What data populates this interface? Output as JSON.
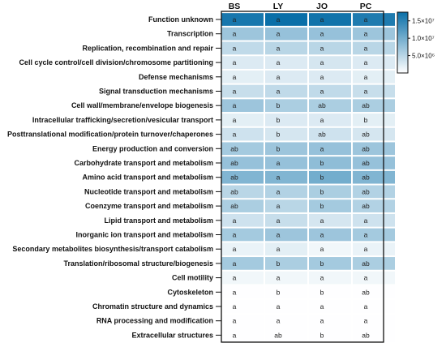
{
  "chart_data": {
    "type": "heatmap",
    "columns": [
      "BS",
      "LY",
      "JO",
      "PC"
    ],
    "rows": [
      "Function unknown",
      "Transcription",
      "Replication, recombination and repair",
      "Cell cycle control/cell division/chromosome partitioning",
      "Defense mechanisms",
      "Signal transduction mechanisms",
      "Cell wall/membrane/envelope biogenesis",
      "Intracellular trafficking/secretion/vesicular transport",
      "Posttranslational modification/protein turnover/chaperones",
      "Energy production and conversion",
      "Carbohydrate transport and metabolism",
      "Amino acid transport and metabolism",
      "Nucleotide transport and metabolism",
      "Coenzyme transport and metabolism",
      "Lipid transport and metabolism",
      "Inorganic ion transport and metabolism",
      "Secondary metabolites biosynthesis/transport catabolism",
      "Translation/ribosomal structure/biogenesis",
      "Cell motility",
      "Cytoskeleton",
      "Chromatin structure and dynamics",
      "RNA processing and modification",
      "Extracellular structures"
    ],
    "values": [
      [
        16500000,
        17500000,
        17000000,
        16000000
      ],
      [
        7000000,
        7500000,
        7500000,
        7000000
      ],
      [
        4500000,
        5000000,
        5000000,
        5000000
      ],
      [
        2500000,
        2500000,
        3000000,
        2500000
      ],
      [
        2000000,
        2500000,
        2500000,
        2000000
      ],
      [
        4000000,
        4500000,
        4500000,
        4000000
      ],
      [
        7000000,
        6000000,
        6000000,
        6000000
      ],
      [
        2000000,
        2500000,
        2500000,
        2000000
      ],
      [
        3500000,
        3000000,
        3500000,
        3000000
      ],
      [
        6500000,
        7000000,
        7500000,
        7000000
      ],
      [
        7500000,
        7500000,
        8000000,
        7500000
      ],
      [
        9000000,
        9000000,
        10000000,
        9000000
      ],
      [
        5000000,
        5500000,
        6000000,
        5500000
      ],
      [
        6000000,
        5000000,
        6500000,
        5500000
      ],
      [
        3500000,
        4000000,
        3000000,
        3500000
      ],
      [
        6500000,
        7000000,
        7000000,
        6500000
      ],
      [
        1500000,
        2000000,
        1000000,
        1500000
      ],
      [
        6500000,
        6000000,
        6500000,
        6000000
      ],
      [
        1000000,
        1000000,
        1000000,
        1000000
      ],
      [
        100000,
        100000,
        100000,
        100000
      ],
      [
        100000,
        100000,
        100000,
        100000
      ],
      [
        100000,
        100000,
        100000,
        100000
      ],
      [
        100000,
        100000,
        100000,
        100000
      ]
    ],
    "letters": [
      [
        "a",
        "a",
        "a",
        "a"
      ],
      [
        "a",
        "a",
        "a",
        "a"
      ],
      [
        "a",
        "a",
        "a",
        "a"
      ],
      [
        "a",
        "a",
        "a",
        "a"
      ],
      [
        "a",
        "a",
        "a",
        "a"
      ],
      [
        "a",
        "a",
        "a",
        "a"
      ],
      [
        "a",
        "b",
        "ab",
        "ab"
      ],
      [
        "a",
        "b",
        "a",
        "b"
      ],
      [
        "a",
        "b",
        "ab",
        "ab"
      ],
      [
        "ab",
        "b",
        "a",
        "ab"
      ],
      [
        "ab",
        "a",
        "b",
        "ab"
      ],
      [
        "ab",
        "a",
        "b",
        "ab"
      ],
      [
        "ab",
        "a",
        "b",
        "ab"
      ],
      [
        "ab",
        "a",
        "b",
        "ab"
      ],
      [
        "a",
        "a",
        "a",
        "a"
      ],
      [
        "a",
        "a",
        "a",
        "a"
      ],
      [
        "a",
        "a",
        "a",
        "a"
      ],
      [
        "a",
        "b",
        "b",
        "ab"
      ],
      [
        "a",
        "a",
        "a",
        "a"
      ],
      [
        "a",
        "b",
        "b",
        "ab"
      ],
      [
        "a",
        "a",
        "a",
        "a"
      ],
      [
        "a",
        "a",
        "a",
        "a"
      ],
      [
        "a",
        "ab",
        "b",
        "ab"
      ]
    ],
    "colorbar": {
      "min": 0,
      "max": 17500000,
      "ticks": [
        {
          "value": 15000000,
          "label": "1.5×10⁷"
        },
        {
          "value": 10000000,
          "label": "1.0×10⁷"
        },
        {
          "value": 5000000,
          "label": "5.0×10⁶"
        }
      ],
      "color_low": "#ffffff",
      "color_high": "#0a6fa8"
    },
    "legend_position": "top-right",
    "grid": false
  }
}
